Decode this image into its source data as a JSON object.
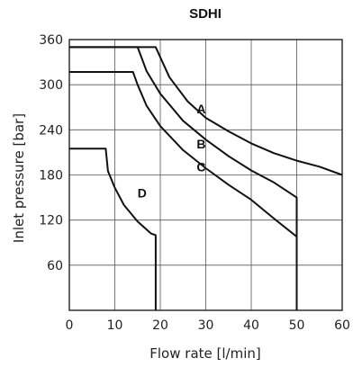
{
  "chart_data": {
    "type": "line",
    "title": "SDHI",
    "xlabel": "Flow rate [l/min]",
    "ylabel": "Inlet pressure [bar]",
    "xlim": [
      0,
      60
    ],
    "ylim": [
      0,
      360
    ],
    "x_ticks": [
      "0",
      "10",
      "20",
      "30",
      "40",
      "50",
      "60"
    ],
    "y_ticks": [
      "60",
      "120",
      "180",
      "240",
      "300",
      "360"
    ],
    "grid": true,
    "series": [
      {
        "name": "A",
        "points": [
          [
            0,
            350
          ],
          [
            19,
            350
          ],
          [
            22,
            310
          ],
          [
            26,
            278
          ],
          [
            30,
            256
          ],
          [
            35,
            238
          ],
          [
            40,
            222
          ],
          [
            45,
            209
          ],
          [
            50,
            199
          ],
          [
            55,
            191
          ],
          [
            60,
            180
          ]
        ],
        "label_at": [
          28,
          262
        ]
      },
      {
        "name": "B",
        "points": [
          [
            0,
            350
          ],
          [
            15,
            350
          ],
          [
            17,
            318
          ],
          [
            20,
            288
          ],
          [
            25,
            252
          ],
          [
            30,
            227
          ],
          [
            35,
            205
          ],
          [
            40,
            186
          ],
          [
            45,
            170
          ],
          [
            50,
            150
          ],
          [
            50,
            0
          ]
        ],
        "label_at": [
          28,
          215
        ]
      },
      {
        "name": "C",
        "points": [
          [
            0,
            317
          ],
          [
            14,
            317
          ],
          [
            15,
            300
          ],
          [
            17,
            272
          ],
          [
            20,
            245
          ],
          [
            25,
            213
          ],
          [
            30,
            189
          ],
          [
            35,
            167
          ],
          [
            40,
            147
          ],
          [
            45,
            122
          ],
          [
            50,
            98
          ],
          [
            50,
            0
          ]
        ],
        "label_at": [
          28,
          185
        ]
      },
      {
        "name": "D",
        "points": [
          [
            0,
            215
          ],
          [
            8,
            215
          ],
          [
            8.5,
            185
          ],
          [
            10,
            163
          ],
          [
            12,
            140
          ],
          [
            15,
            118
          ],
          [
            18,
            102
          ],
          [
            19,
            100
          ],
          [
            19,
            0
          ]
        ],
        "label_at": [
          15,
          150
        ]
      }
    ]
  }
}
